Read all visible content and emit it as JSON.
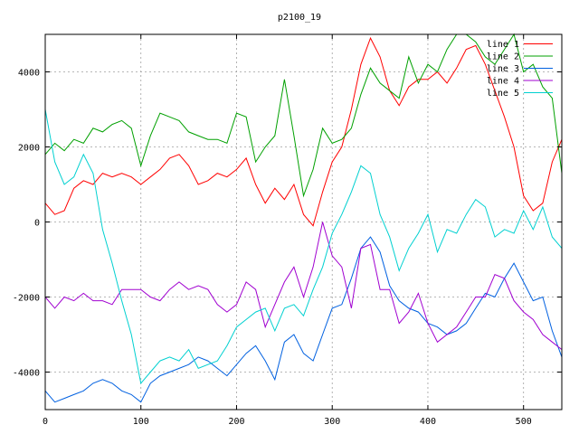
{
  "chart_data": {
    "type": "line",
    "title": "p2100_19",
    "xlabel": "",
    "ylabel": "",
    "xlim": [
      0,
      540
    ],
    "ylim": [
      -5000,
      5000
    ],
    "xticks": [
      0,
      100,
      200,
      300,
      400,
      500
    ],
    "yticks": [
      -4000,
      -2000,
      0,
      2000,
      4000
    ],
    "xtick_labels": [
      "0",
      "100",
      "200",
      "300",
      "400",
      "500"
    ],
    "ytick_labels": [
      "-4000",
      "-2000",
      "0",
      "2000",
      "4000"
    ],
    "grid": true,
    "legend_position": "top-right",
    "series": [
      {
        "name": "line 1",
        "color": "#ff0000",
        "x": [
          0,
          10,
          20,
          30,
          40,
          50,
          60,
          70,
          80,
          90,
          100,
          110,
          120,
          130,
          140,
          150,
          160,
          170,
          180,
          190,
          200,
          210,
          220,
          230,
          240,
          250,
          260,
          270,
          280,
          290,
          300,
          310,
          320,
          330,
          340,
          350,
          360,
          370,
          380,
          390,
          400,
          410,
          420,
          430,
          440,
          450,
          460,
          470,
          480,
          490,
          500,
          510,
          520,
          530,
          540
        ],
        "y": [
          500,
          200,
          300,
          900,
          1100,
          1000,
          1300,
          1200,
          1300,
          1200,
          1000,
          1200,
          1400,
          1700,
          1800,
          1500,
          1000,
          1100,
          1300,
          1200,
          1400,
          1700,
          1000,
          500,
          900,
          600,
          1000,
          200,
          -100,
          800,
          1600,
          2000,
          3000,
          4200,
          4900,
          4400,
          3500,
          3100,
          3600,
          3800,
          3800,
          4000,
          3700,
          4100,
          4600,
          4700,
          4200,
          3500,
          2800,
          2000,
          700,
          300,
          500,
          1600,
          2200
        ]
      },
      {
        "name": "line 2",
        "color": "#00a000",
        "x": [
          0,
          10,
          20,
          30,
          40,
          50,
          60,
          70,
          80,
          90,
          100,
          110,
          120,
          130,
          140,
          150,
          160,
          170,
          180,
          190,
          200,
          210,
          220,
          230,
          240,
          250,
          260,
          270,
          280,
          290,
          300,
          310,
          320,
          330,
          340,
          350,
          360,
          370,
          380,
          390,
          400,
          410,
          420,
          430,
          440,
          450,
          460,
          470,
          480,
          490,
          500,
          510,
          520,
          530,
          540
        ],
        "y": [
          1800,
          2100,
          1900,
          2200,
          2100,
          2500,
          2400,
          2600,
          2700,
          2500,
          1500,
          2300,
          2900,
          2800,
          2700,
          2400,
          2300,
          2200,
          2200,
          2100,
          2900,
          2800,
          1600,
          2000,
          2300,
          3800,
          2300,
          700,
          1400,
          2500,
          2100,
          2200,
          2500,
          3400,
          4100,
          3700,
          3500,
          3300,
          4400,
          3700,
          4200,
          4000,
          4600,
          5000,
          5000,
          4800,
          4400,
          4200,
          4600,
          5000,
          4000,
          4200,
          3600,
          3300,
          1300
        ]
      },
      {
        "name": "line 3",
        "color": "#0060e0",
        "x": [
          0,
          10,
          20,
          30,
          40,
          50,
          60,
          70,
          80,
          90,
          100,
          110,
          120,
          130,
          140,
          150,
          160,
          170,
          180,
          190,
          200,
          210,
          220,
          230,
          240,
          250,
          260,
          270,
          280,
          290,
          300,
          310,
          320,
          330,
          340,
          350,
          360,
          370,
          380,
          390,
          400,
          410,
          420,
          430,
          440,
          450,
          460,
          470,
          480,
          490,
          500,
          510,
          520,
          530,
          540
        ],
        "y": [
          -4500,
          -4800,
          -4700,
          -4600,
          -4500,
          -4300,
          -4200,
          -4300,
          -4500,
          -4600,
          -4800,
          -4300,
          -4100,
          -4000,
          -3900,
          -3800,
          -3600,
          -3700,
          -3900,
          -4100,
          -3800,
          -3500,
          -3300,
          -3700,
          -4200,
          -3200,
          -3000,
          -3500,
          -3700,
          -3000,
          -2300,
          -2200,
          -1500,
          -700,
          -400,
          -800,
          -1700,
          -2100,
          -2300,
          -2400,
          -2700,
          -2800,
          -3000,
          -2900,
          -2700,
          -2300,
          -1900,
          -2000,
          -1500,
          -1100,
          -1600,
          -2100,
          -2000,
          -2900,
          -3600
        ]
      },
      {
        "name": "line 4",
        "color": "#a000d0",
        "x": [
          0,
          10,
          20,
          30,
          40,
          50,
          60,
          70,
          80,
          90,
          100,
          110,
          120,
          130,
          140,
          150,
          160,
          170,
          180,
          190,
          200,
          210,
          220,
          230,
          240,
          250,
          260,
          270,
          280,
          290,
          300,
          310,
          320,
          330,
          340,
          350,
          360,
          370,
          380,
          390,
          400,
          410,
          420,
          430,
          440,
          450,
          460,
          470,
          480,
          490,
          500,
          510,
          520,
          530,
          540
        ],
        "y": [
          -2000,
          -2300,
          -2000,
          -2100,
          -1900,
          -2100,
          -2100,
          -2200,
          -1800,
          -1800,
          -1800,
          -2000,
          -2100,
          -1800,
          -1600,
          -1800,
          -1700,
          -1800,
          -2200,
          -2400,
          -2200,
          -1600,
          -1800,
          -2800,
          -2200,
          -1600,
          -1200,
          -2000,
          -1200,
          0,
          -900,
          -1200,
          -2300,
          -700,
          -600,
          -1800,
          -1800,
          -2700,
          -2400,
          -1900,
          -2700,
          -3200,
          -3000,
          -2800,
          -2400,
          -2000,
          -2000,
          -1400,
          -1500,
          -2100,
          -2400,
          -2600,
          -3000,
          -3200,
          -3400
        ]
      },
      {
        "name": "line 5",
        "color": "#00d0d0",
        "x": [
          0,
          10,
          20,
          30,
          40,
          50,
          60,
          70,
          80,
          90,
          100,
          110,
          120,
          130,
          140,
          150,
          160,
          170,
          180,
          190,
          200,
          210,
          220,
          230,
          240,
          250,
          260,
          270,
          280,
          290,
          300,
          310,
          320,
          330,
          340,
          350,
          360,
          370,
          380,
          390,
          400,
          410,
          420,
          430,
          440,
          450,
          460,
          470,
          480,
          490,
          500,
          510,
          520,
          530,
          540
        ],
        "y": [
          3000,
          1600,
          1000,
          1200,
          1800,
          1300,
          -200,
          -1100,
          -2100,
          -3000,
          -4300,
          -4000,
          -3700,
          -3600,
          -3700,
          -3400,
          -3900,
          -3800,
          -3700,
          -3300,
          -2800,
          -2600,
          -2400,
          -2300,
          -2900,
          -2300,
          -2200,
          -2500,
          -1800,
          -1200,
          -300,
          200,
          800,
          1500,
          1300,
          200,
          -400,
          -1300,
          -700,
          -300,
          200,
          -800,
          -200,
          -300,
          200,
          600,
          400,
          -400,
          -200,
          -300,
          300,
          -200,
          400,
          -400,
          -700
        ]
      }
    ]
  }
}
